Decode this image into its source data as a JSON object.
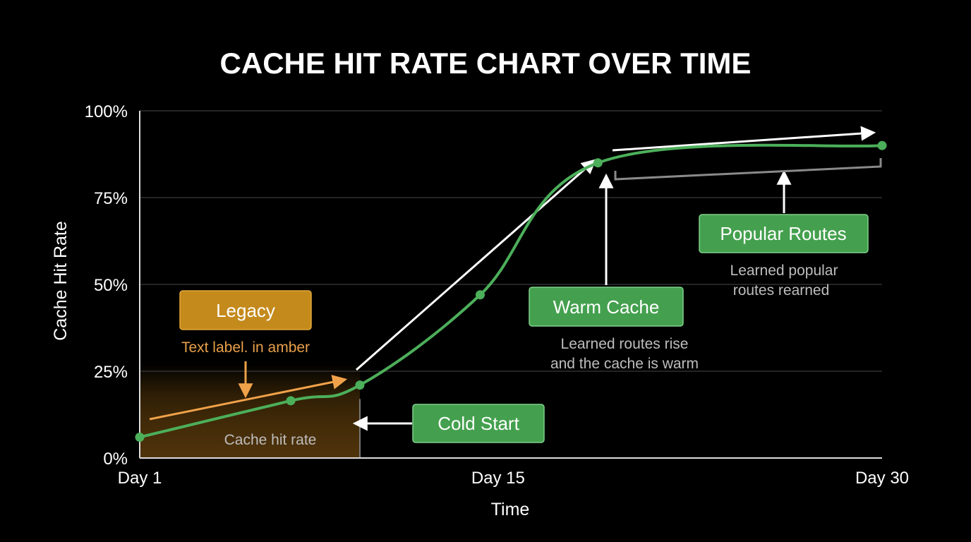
{
  "chart_data": {
    "type": "line",
    "title": "CACHE HIT RATE CHART OVER TIME",
    "xlabel": "Time",
    "ylabel": "Cache Hit Rate",
    "x_ticks": [
      {
        "label": "Day 1",
        "day": 1
      },
      {
        "label": "Day 15",
        "day": 15
      },
      {
        "label": "Day 30",
        "day": 30
      }
    ],
    "y_ticks": [
      {
        "label": "0%",
        "value": 0
      },
      {
        "label": "25%",
        "value": 25
      },
      {
        "label": "50%",
        "value": 50
      },
      {
        "label": "75%",
        "value": 75
      },
      {
        "label": "100%",
        "value": 100
      }
    ],
    "xlim": [
      1,
      30
    ],
    "ylim": [
      0,
      100
    ],
    "grid": true,
    "series": [
      {
        "color": "#4caf5a",
        "points": [
          {
            "x": 1,
            "y": 6
          },
          {
            "x": 6.9,
            "y": 16.5
          },
          {
            "x": 9.6,
            "y": 21
          },
          {
            "x": 14.3,
            "y": 47
          },
          {
            "x": 18.9,
            "y": 85
          },
          {
            "x": 30,
            "y": 90
          }
        ]
      }
    ],
    "shaded_region": {
      "x_from": 1,
      "x_to": 9.6,
      "label": "Cache hit rate",
      "color": "#a06a10"
    },
    "annotations": {
      "legacy": {
        "label": "Legacy",
        "note": "Text label. in amber",
        "color": "#d99522"
      },
      "cold_start": {
        "label": "Cold Start"
      },
      "warm_cache": {
        "label": "Warm Cache",
        "note_line1": "Learned routes rise",
        "note_line2": "and the cache is warm"
      },
      "popular_routes": {
        "label": "Popular Routes",
        "note_line1": "Learned popular",
        "note_line2": "routes rearned"
      }
    },
    "colors": {
      "background": "#000000",
      "line": "#4caf5a",
      "box_green": "#44a04e",
      "box_amber": "#c48a1c",
      "amber_text": "#e9a04a",
      "grid": "#3a3a3a",
      "muted_text": "#bdbdbd"
    }
  }
}
